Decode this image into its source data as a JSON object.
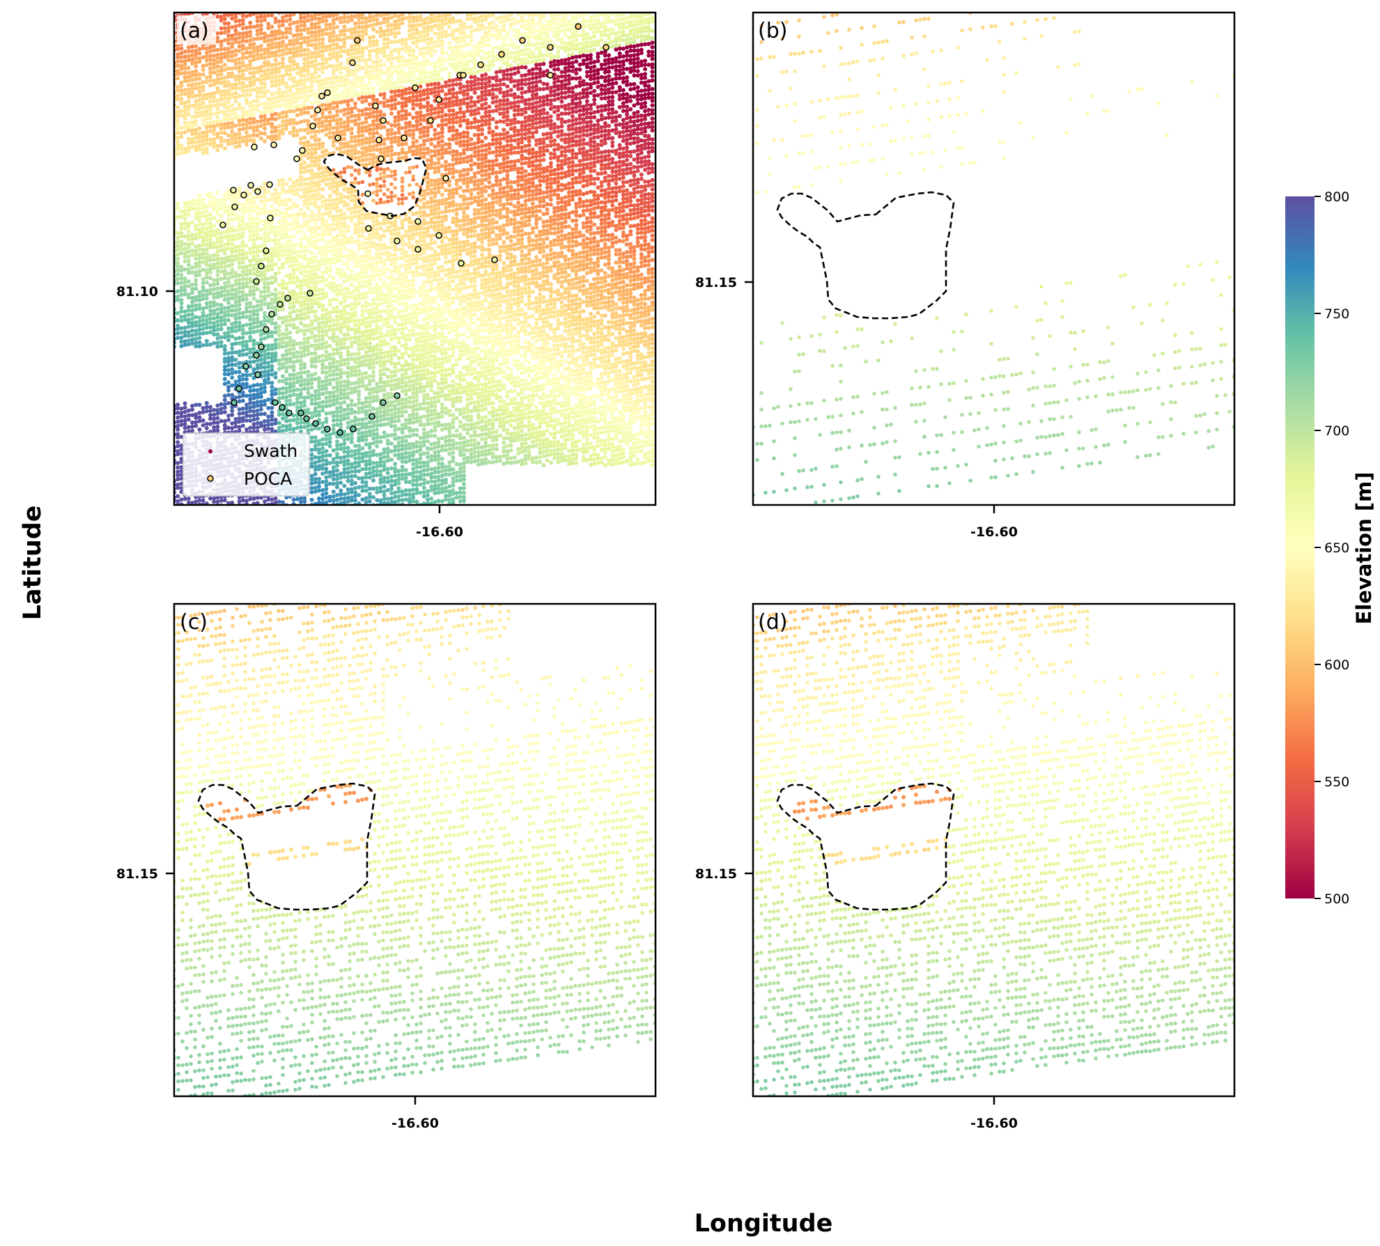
{
  "figure": {
    "xlabel": "Longitude",
    "ylabel": "Latitude"
  },
  "colorbar": {
    "label": "Elevation [m]",
    "cmap": "Spectral",
    "range": [
      500,
      800
    ],
    "ticks": [
      500,
      550,
      600,
      650,
      700,
      750,
      800
    ],
    "tick_labels": [
      "500",
      "550",
      "600",
      "650",
      "700",
      "750",
      "800"
    ],
    "stops": [
      "#9e0142",
      "#d53e4f",
      "#f46d43",
      "#fdae61",
      "#fee08b",
      "#ffffbf",
      "#e6f598",
      "#abdda4",
      "#66c2a5",
      "#3288bd",
      "#5e4fa2"
    ]
  },
  "chart_data": [
    {
      "panel": "(a)",
      "type": "scatter",
      "xtick_label": "-16.60",
      "ytick_label": "81.10",
      "legend": [
        "Swath",
        "POCA"
      ],
      "series": [
        {
          "name": "Swath",
          "color_by": "elevation",
          "elevation_range_m": [
            500,
            800
          ]
        },
        {
          "name": "POCA",
          "marker": "open circle",
          "edge_color": "#000000"
        }
      ],
      "outline": "dashed black polygon"
    },
    {
      "panel": "(b)",
      "type": "scatter",
      "xtick_label": "-16.60",
      "ytick_label": "81.15",
      "series": [
        {
          "color_by": "elevation"
        }
      ],
      "outline": "dashed black polygon"
    },
    {
      "panel": "(c)",
      "type": "scatter",
      "xtick_label": "-16.60",
      "ytick_label": "81.15",
      "series": [
        {
          "color_by": "elevation"
        }
      ],
      "outline": "dashed black polygon"
    },
    {
      "panel": "(d)",
      "type": "scatter",
      "xtick_label": "-16.60",
      "ytick_label": "81.15",
      "series": [
        {
          "color_by": "elevation"
        }
      ],
      "outline": "dashed black polygon"
    }
  ]
}
